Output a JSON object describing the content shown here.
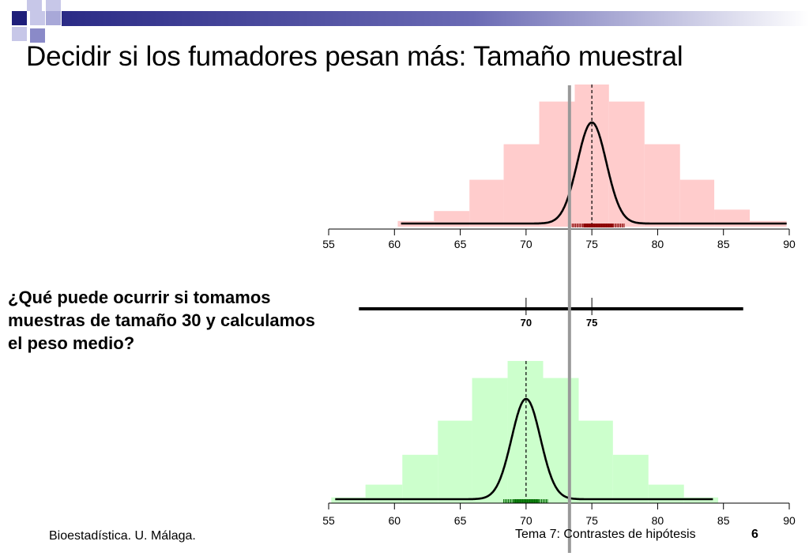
{
  "slide": {
    "title": "Decidir si los fumadores pesan más: Tamaño muestral",
    "question": "¿Qué puede ocurrir si tomamos muestras de tamaño 30 y calculamos el peso medio?",
    "footer_left": "Bioestadística. U. Málaga.",
    "footer_right": "Tema 7: Contrastes de hipótesis",
    "page_number": "6"
  },
  "colors": {
    "deco_dark": "#1f1f7a",
    "deco_light": "#9a9ad0",
    "top_hist": "#ffcccc",
    "top_rug": "#8b0000",
    "bottom_hist": "#ccffcc",
    "bottom_rug": "#007000",
    "threshold_line": "#999999"
  },
  "chart_data": [
    {
      "type": "histogram",
      "name": "top",
      "xlim": [
        55,
        90
      ],
      "ticks": [
        55,
        60,
        65,
        70,
        75,
        80,
        85,
        90
      ],
      "bins": [
        {
          "x0": 60.25,
          "x1": 63,
          "h": 0.04
        },
        {
          "x0": 63,
          "x1": 65.7,
          "h": 0.11
        },
        {
          "x0": 65.7,
          "x1": 68.3,
          "h": 0.33
        },
        {
          "x0": 68.3,
          "x1": 71,
          "h": 0.58
        },
        {
          "x0": 71,
          "x1": 73.7,
          "h": 0.88
        },
        {
          "x0": 73.7,
          "x1": 76.3,
          "h": 1.0
        },
        {
          "x0": 76.3,
          "x1": 79,
          "h": 0.88
        },
        {
          "x0": 79,
          "x1": 81.7,
          "h": 0.58
        },
        {
          "x0": 81.7,
          "x1": 84.3,
          "h": 0.33
        },
        {
          "x0": 84.3,
          "x1": 87,
          "h": 0.12
        },
        {
          "x0": 87,
          "x1": 89.8,
          "h": 0.04
        }
      ],
      "curve": {
        "mean": 75,
        "sd": 1.1,
        "from": 60.5,
        "to": 89.8
      },
      "mean_line": 75,
      "rug": {
        "from": 73.5,
        "to": 77.5
      }
    },
    {
      "type": "axis",
      "name": "middle",
      "ticks": [
        70,
        75
      ],
      "tick_labels": [
        "70",
        "75"
      ],
      "xlim": [
        57.3,
        86.5
      ]
    },
    {
      "type": "histogram",
      "name": "bottom",
      "xlim": [
        55,
        90
      ],
      "ticks": [
        55,
        60,
        65,
        70,
        75,
        80,
        85,
        90
      ],
      "bins": [
        {
          "x0": 55.2,
          "x1": 57.8,
          "h": 0.04
        },
        {
          "x0": 57.8,
          "x1": 60.6,
          "h": 0.13
        },
        {
          "x0": 60.6,
          "x1": 63.3,
          "h": 0.34
        },
        {
          "x0": 63.3,
          "x1": 65.9,
          "h": 0.58
        },
        {
          "x0": 65.9,
          "x1": 68.6,
          "h": 0.88
        },
        {
          "x0": 68.6,
          "x1": 71.3,
          "h": 1.0
        },
        {
          "x0": 71.3,
          "x1": 74,
          "h": 0.88
        },
        {
          "x0": 74,
          "x1": 76.6,
          "h": 0.58
        },
        {
          "x0": 76.6,
          "x1": 79.3,
          "h": 0.34
        },
        {
          "x0": 79.3,
          "x1": 82,
          "h": 0.13
        },
        {
          "x0": 82,
          "x1": 84.6,
          "h": 0.04
        }
      ],
      "curve": {
        "mean": 70,
        "sd": 1.1,
        "from": 55.5,
        "to": 84.2
      },
      "mean_line": 70,
      "rug": {
        "from": 68.3,
        "to": 71.7
      }
    }
  ],
  "threshold": 73.3
}
